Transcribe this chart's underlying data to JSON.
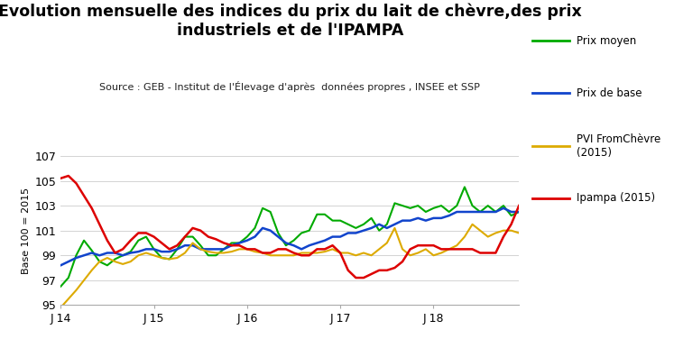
{
  "title": "Evolution mensuelle des indices du prix du lait de chèvre,des prix\nindustriels et de l'IPAMPA",
  "subtitle": "Source : GEB - Institut de l'Élevage d'après  données propres , INSEE et SSP",
  "ylabel": "Base 100 = 2015",
  "ylim": [
    95,
    107
  ],
  "yticks": [
    95,
    97,
    99,
    101,
    103,
    105,
    107
  ],
  "xtick_labels": [
    "J 14",
    "J 15",
    "J 16",
    "J 17",
    "J 18"
  ],
  "xtick_positions": [
    0,
    12,
    24,
    36,
    48
  ],
  "n_points": 60,
  "legend_labels": [
    "Prix moyen",
    "Prix de base",
    "PVI FromChèvre\n(2015)",
    "Ipampa (2015)"
  ],
  "colors": {
    "prix_moyen": "#00aa00",
    "prix_de_base": "#1144cc",
    "pvi": "#ddaa00",
    "ipampa": "#dd0000"
  },
  "prix_moyen": [
    96.5,
    97.2,
    99.0,
    100.2,
    99.4,
    98.5,
    98.2,
    98.7,
    99.0,
    99.3,
    100.2,
    100.5,
    99.5,
    98.8,
    98.7,
    99.5,
    100.5,
    100.5,
    99.8,
    99.0,
    99.0,
    99.5,
    100.0,
    100.0,
    100.5,
    101.2,
    102.8,
    102.5,
    100.8,
    99.8,
    100.2,
    100.8,
    101.0,
    102.3,
    102.3,
    101.8,
    101.8,
    101.5,
    101.2,
    101.5,
    102.0,
    101.0,
    101.5,
    103.2,
    103.0,
    102.8,
    103.0,
    102.5,
    102.8,
    103.0,
    102.5,
    103.0,
    104.5,
    103.0,
    102.5,
    103.0,
    102.5,
    103.0,
    102.2,
    102.5
  ],
  "prix_de_base": [
    98.2,
    98.5,
    98.8,
    99.0,
    99.2,
    99.0,
    99.2,
    99.2,
    99.0,
    99.2,
    99.3,
    99.5,
    99.5,
    99.3,
    99.3,
    99.5,
    99.8,
    99.8,
    99.5,
    99.5,
    99.5,
    99.5,
    99.8,
    100.0,
    100.2,
    100.5,
    101.2,
    101.0,
    100.5,
    100.0,
    99.8,
    99.5,
    99.8,
    100.0,
    100.2,
    100.5,
    100.5,
    100.8,
    100.8,
    101.0,
    101.2,
    101.5,
    101.2,
    101.5,
    101.8,
    101.8,
    102.0,
    101.8,
    102.0,
    102.0,
    102.2,
    102.5,
    102.5,
    102.5,
    102.5,
    102.5,
    102.5,
    102.8,
    102.5,
    102.5
  ],
  "pvi": [
    94.8,
    95.5,
    96.2,
    97.0,
    97.8,
    98.5,
    98.8,
    98.5,
    98.3,
    98.5,
    99.0,
    99.2,
    99.0,
    98.8,
    98.7,
    98.8,
    99.2,
    100.0,
    99.5,
    99.3,
    99.2,
    99.2,
    99.3,
    99.5,
    99.5,
    99.3,
    99.2,
    99.0,
    99.0,
    99.0,
    99.0,
    99.2,
    99.2,
    99.2,
    99.3,
    99.5,
    99.2,
    99.2,
    99.0,
    99.2,
    99.0,
    99.5,
    100.0,
    101.2,
    99.5,
    99.0,
    99.2,
    99.5,
    99.0,
    99.2,
    99.5,
    99.8,
    100.5,
    101.5,
    101.0,
    100.5,
    100.8,
    101.0,
    101.0,
    100.8
  ],
  "ipampa": [
    105.2,
    105.4,
    104.8,
    103.8,
    102.8,
    101.5,
    100.2,
    99.2,
    99.5,
    100.2,
    100.8,
    100.8,
    100.5,
    100.0,
    99.5,
    99.8,
    100.5,
    101.2,
    101.0,
    100.5,
    100.3,
    100.0,
    99.8,
    99.8,
    99.5,
    99.5,
    99.2,
    99.2,
    99.5,
    99.5,
    99.2,
    99.0,
    99.0,
    99.5,
    99.5,
    99.8,
    99.2,
    97.8,
    97.2,
    97.2,
    97.5,
    97.8,
    97.8,
    98.0,
    98.5,
    99.5,
    99.8,
    99.8,
    99.8,
    99.5,
    99.5,
    99.5,
    99.5,
    99.5,
    99.2,
    99.2,
    99.2,
    100.5,
    101.5,
    103.0
  ]
}
